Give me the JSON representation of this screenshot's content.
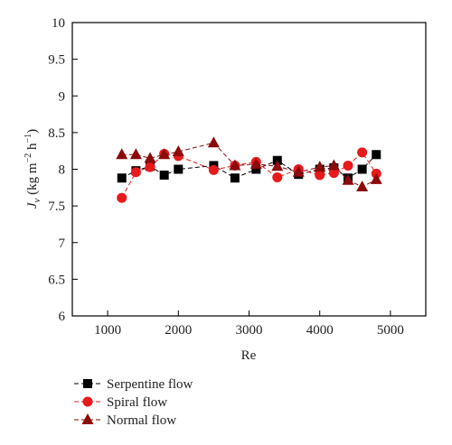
{
  "chart_data": {
    "type": "line",
    "xlabel": "Re",
    "ylabel": {
      "base": "J",
      "sub": "v",
      "units_open": " (kg m",
      "exp1": "−2",
      "units_mid": " h",
      "exp2": "−1",
      "units_close": ")"
    },
    "xlim": [
      500,
      5500
    ],
    "ylim": [
      6,
      10
    ],
    "xticks": [
      "1000",
      "2000",
      "3000",
      "4000",
      "5000"
    ],
    "xtick_values": [
      1000,
      2000,
      3000,
      4000,
      5000
    ],
    "yticks": [
      "6",
      "6.5",
      "7",
      "7.5",
      "8",
      "8.5",
      "9",
      "9.5",
      "10"
    ],
    "ytick_values": [
      6,
      6.5,
      7,
      7.5,
      8,
      8.5,
      9,
      9.5,
      10
    ],
    "legend_position": "bottom-left, below plot",
    "series": [
      {
        "name": "Serpentine flow",
        "marker": "square",
        "color": "#000000",
        "x": [
          1200,
          1400,
          1600,
          1800,
          2000,
          2500,
          2800,
          3100,
          3400,
          3700,
          4000,
          4200,
          4400,
          4600,
          4800
        ],
        "y": [
          7.88,
          7.98,
          8.04,
          7.92,
          8.0,
          8.05,
          7.88,
          8.0,
          8.12,
          7.93,
          8.0,
          8.02,
          7.88,
          8.0,
          8.2
        ]
      },
      {
        "name": "Spiral flow",
        "marker": "circle",
        "color": "#e8191b",
        "x": [
          1200,
          1400,
          1600,
          1800,
          2000,
          2500,
          2800,
          3100,
          3400,
          3700,
          4000,
          4200,
          4400,
          4600,
          4800
        ],
        "y": [
          7.61,
          7.96,
          8.03,
          8.21,
          8.18,
          7.99,
          8.05,
          8.1,
          7.89,
          8.0,
          7.92,
          7.95,
          8.05,
          8.23,
          7.94
        ]
      },
      {
        "name": "Normal flow",
        "marker": "triangle",
        "color": "#8b0a0a",
        "x": [
          1200,
          1400,
          1600,
          1800,
          2000,
          2500,
          2800,
          3100,
          3400,
          3700,
          4000,
          4200,
          4400,
          4600,
          4800
        ],
        "y": [
          8.2,
          8.2,
          8.15,
          8.2,
          8.24,
          8.36,
          8.05,
          8.07,
          8.04,
          7.96,
          8.03,
          8.05,
          7.85,
          7.76,
          7.86
        ]
      }
    ]
  }
}
